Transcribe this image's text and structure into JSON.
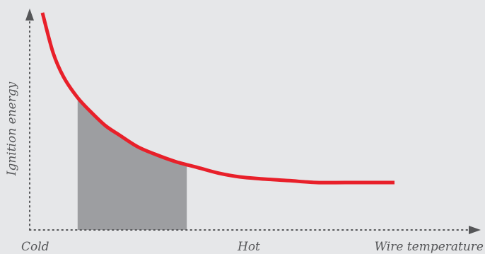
{
  "chart_data": {
    "type": "line",
    "title": "",
    "xlabel": "Wire temperature",
    "ylabel": "Ignition energy",
    "x_tick_labels": [
      "Cold",
      "Hot"
    ],
    "series": [
      {
        "values_description": "",
        "x": [
          0.0,
          0.03,
          0.06,
          0.1,
          0.14,
          0.18,
          0.22,
          0.27,
          0.32,
          0.38,
          0.44,
          0.5,
          0.56,
          0.62,
          0.7,
          0.78,
          0.86,
          0.94,
          1.0
        ],
        "y": [
          1.0,
          0.79,
          0.66,
          0.55,
          0.47,
          0.4,
          0.35,
          0.29,
          0.25,
          0.21,
          0.18,
          0.15,
          0.13,
          0.12,
          0.11,
          0.1,
          0.1,
          0.1,
          0.1
        ]
      }
    ],
    "shaded_region": {
      "x_range": [
        0.1,
        0.41
      ]
    },
    "colors": {
      "curve": "#e8202a",
      "shaded": "#9d9ea1",
      "axis": "#555658",
      "background": "#e6e7e9"
    },
    "grid": false,
    "legend": "none"
  }
}
